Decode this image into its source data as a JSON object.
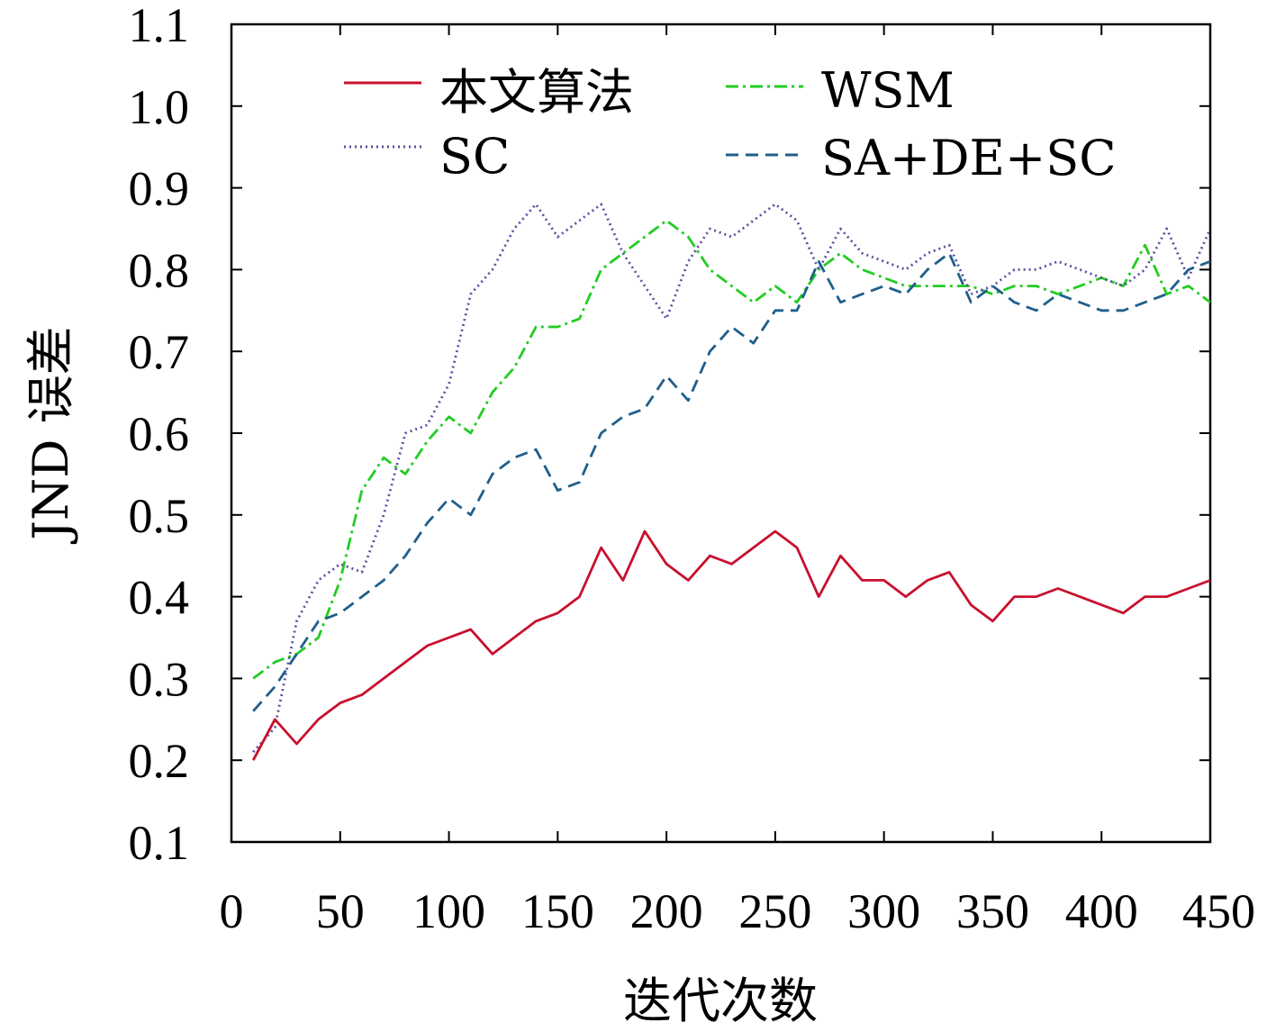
{
  "chart_data": {
    "type": "line",
    "xlabel": "迭代次数",
    "ylabel": "JND 误差",
    "xlim": [
      0,
      450
    ],
    "ylim": [
      0.1,
      1.1
    ],
    "x_ticks": [
      "0",
      "50",
      "100",
      "150",
      "200",
      "250",
      "300",
      "350",
      "400",
      "450"
    ],
    "y_ticks": [
      "0.1",
      "0.2",
      "0.3",
      "0.4",
      "0.5",
      "0.6",
      "0.7",
      "0.8",
      "0.9",
      "1.0",
      "1.1"
    ],
    "grid": false,
    "legend_position": "top",
    "x": [
      10,
      20,
      30,
      40,
      50,
      60,
      70,
      80,
      90,
      100,
      110,
      120,
      130,
      140,
      150,
      160,
      170,
      180,
      190,
      200,
      210,
      220,
      230,
      240,
      250,
      260,
      270,
      280,
      290,
      300,
      310,
      320,
      330,
      340,
      350,
      360,
      370,
      380,
      390,
      400,
      410,
      420,
      430,
      440,
      450
    ],
    "series": [
      {
        "name": "本文算法",
        "color": "#c8102e",
        "dash": "solid",
        "values": [
          0.2,
          0.25,
          0.22,
          0.25,
          0.27,
          0.28,
          0.3,
          0.32,
          0.34,
          0.35,
          0.36,
          0.33,
          0.35,
          0.37,
          0.38,
          0.4,
          0.46,
          0.42,
          0.48,
          0.44,
          0.42,
          0.45,
          0.44,
          0.46,
          0.48,
          0.46,
          0.4,
          0.45,
          0.42,
          0.42,
          0.4,
          0.42,
          0.43,
          0.39,
          0.37,
          0.4,
          0.4,
          0.41,
          0.4,
          0.39,
          0.38,
          0.4,
          0.4,
          0.41,
          0.42
        ]
      },
      {
        "name": "WSM",
        "color": "#22cc22",
        "dash": "dashdot",
        "values": [
          0.3,
          0.32,
          0.33,
          0.35,
          0.42,
          0.53,
          0.57,
          0.55,
          0.59,
          0.62,
          0.6,
          0.65,
          0.68,
          0.73,
          0.73,
          0.74,
          0.8,
          0.82,
          0.84,
          0.86,
          0.84,
          0.8,
          0.78,
          0.76,
          0.78,
          0.76,
          0.8,
          0.82,
          0.8,
          0.79,
          0.78,
          0.78,
          0.78,
          0.78,
          0.77,
          0.78,
          0.78,
          0.77,
          0.78,
          0.79,
          0.78,
          0.83,
          0.77,
          0.78,
          0.76
        ]
      },
      {
        "name": "SC",
        "color": "#5a4fa0",
        "dash": "dotted",
        "values": [
          0.21,
          0.24,
          0.37,
          0.42,
          0.44,
          0.43,
          0.5,
          0.6,
          0.61,
          0.66,
          0.77,
          0.8,
          0.85,
          0.88,
          0.84,
          0.86,
          0.88,
          0.82,
          0.78,
          0.74,
          0.81,
          0.85,
          0.84,
          0.86,
          0.88,
          0.86,
          0.8,
          0.85,
          0.82,
          0.81,
          0.8,
          0.82,
          0.83,
          0.77,
          0.78,
          0.8,
          0.8,
          0.81,
          0.8,
          0.79,
          0.78,
          0.8,
          0.85,
          0.79,
          0.85
        ]
      },
      {
        "name": "SA+DE+SC",
        "color": "#1f5f8b",
        "dash": "dashed",
        "values": [
          0.26,
          0.29,
          0.33,
          0.37,
          0.38,
          0.4,
          0.42,
          0.45,
          0.49,
          0.52,
          0.5,
          0.55,
          0.57,
          0.58,
          0.53,
          0.54,
          0.6,
          0.62,
          0.63,
          0.67,
          0.64,
          0.7,
          0.73,
          0.71,
          0.75,
          0.75,
          0.81,
          0.76,
          0.77,
          0.78,
          0.77,
          0.8,
          0.82,
          0.76,
          0.78,
          0.76,
          0.75,
          0.77,
          0.76,
          0.75,
          0.75,
          0.76,
          0.77,
          0.8,
          0.81
        ]
      }
    ]
  }
}
